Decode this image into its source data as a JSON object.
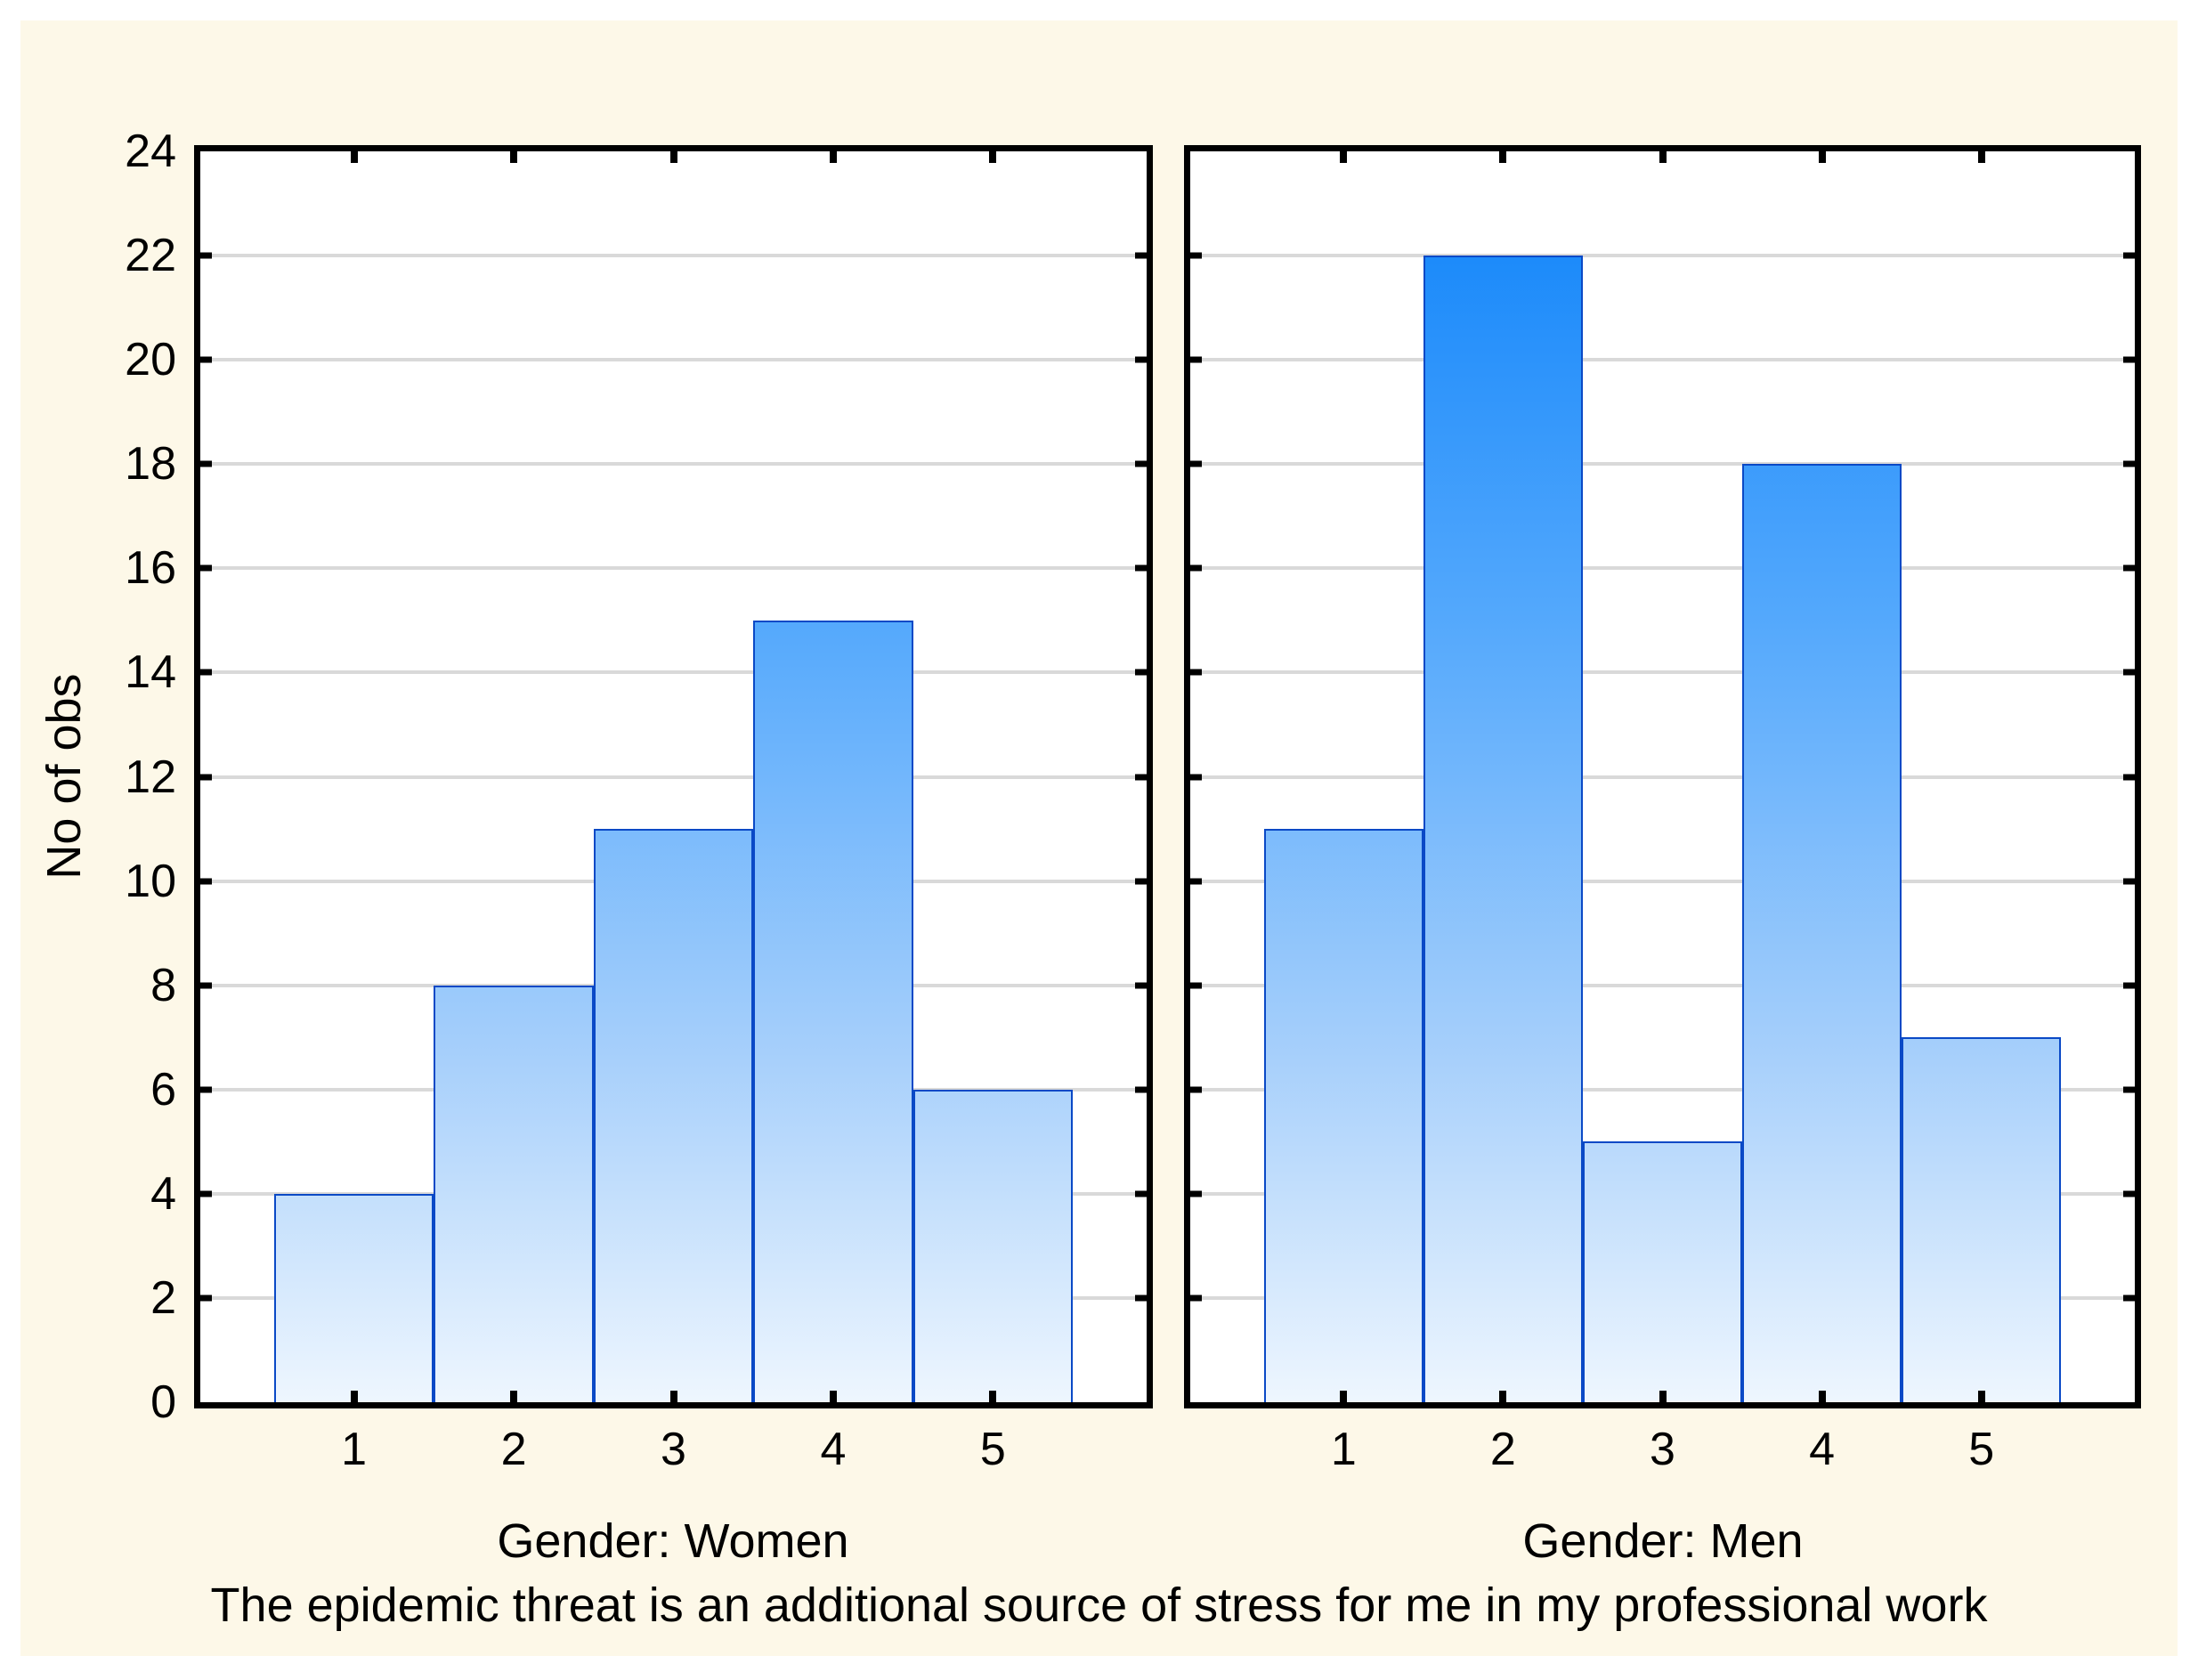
{
  "figure": {
    "canvas_background": "#fdf8e8",
    "plot_background": "#ffffff",
    "y_axis_title": "No of obs",
    "x_axis_title": "The epidemic threat is an additional source of stress for me in my professional work"
  },
  "chart_data": {
    "type": "bar",
    "subtype": "histogram-panels",
    "categories": [
      "1",
      "2",
      "3",
      "4",
      "5"
    ],
    "series": [
      {
        "name": "Gender: Women",
        "values": [
          4,
          8,
          11,
          15,
          6
        ]
      },
      {
        "name": "Gender: Men",
        "values": [
          11,
          22,
          5,
          18,
          7
        ]
      }
    ],
    "title": "",
    "xlabel": "The epidemic threat is an additional source of stress for me in my professional work",
    "ylabel": "No of obs",
    "ylim": [
      0,
      24
    ],
    "ytick_step": 2,
    "yticks": [
      0,
      2,
      4,
      6,
      8,
      10,
      12,
      14,
      16,
      18,
      20,
      22,
      24
    ],
    "grid": "horizontal",
    "legend_position": "none",
    "colors": {
      "bar_gradient_top": "#0c82fa",
      "bar_gradient_upper_mid": "#55a9fc",
      "bar_gradient_lower_mid": "#a6cffb",
      "bar_gradient_bottom": "#eef6fe",
      "bar_border": "#0a49c6",
      "gridline": "#d9d9d9",
      "axis": "#000000",
      "canvas": "#fdf8e8"
    }
  }
}
